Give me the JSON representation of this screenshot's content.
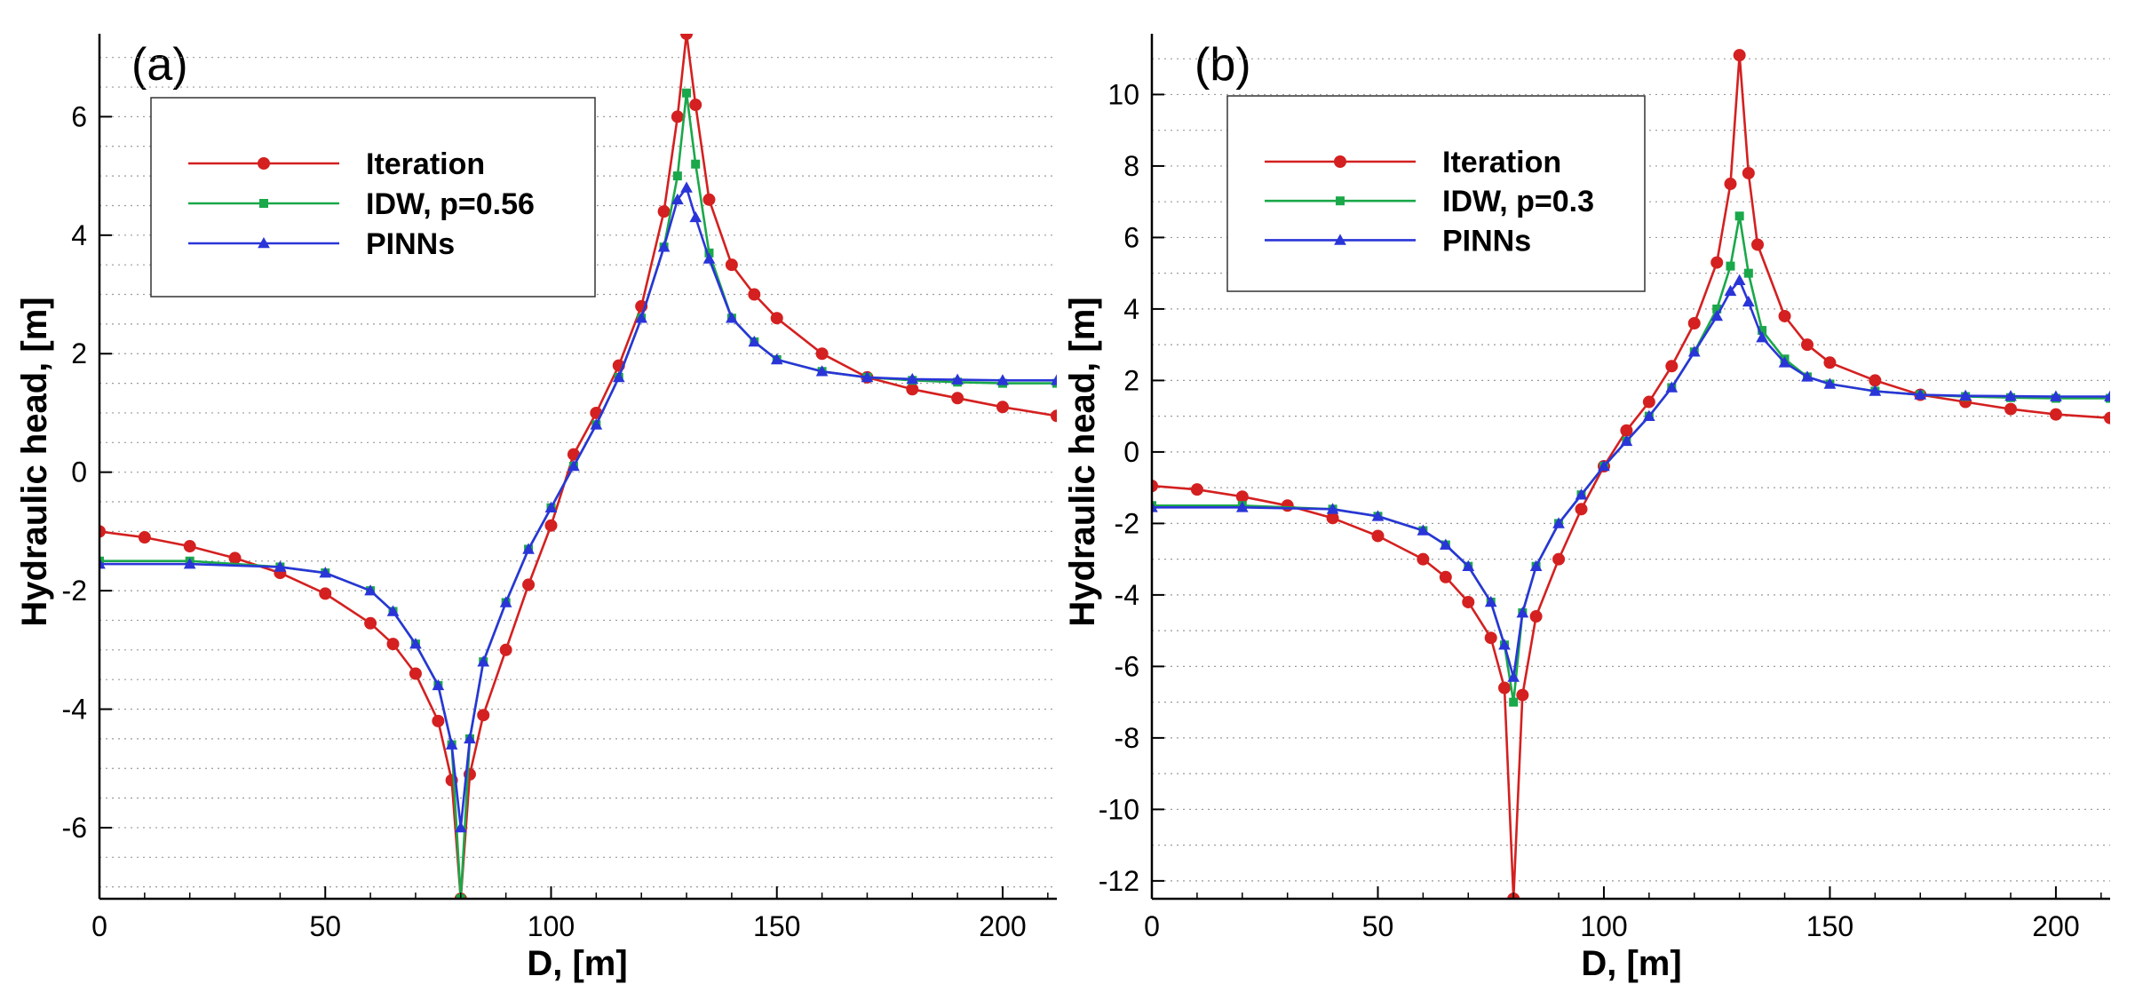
{
  "chart_data": [
    {
      "type": "line",
      "panel_label": "(a)",
      "xlabel": "D, [m]",
      "ylabel": "Hydraulic head, [m]",
      "xlim": [
        0,
        212
      ],
      "ylim": [
        -7.2,
        7.4
      ],
      "xticks": [
        0,
        50,
        100,
        150,
        200
      ],
      "yticks": [
        -6,
        -4,
        -2,
        0,
        2,
        4,
        6
      ],
      "grid": "horizontal dotted",
      "legend_position": "top-left",
      "series": [
        {
          "name": "Iteration",
          "color": "#d42020",
          "marker": "circle",
          "points": [
            [
              0,
              -1.0
            ],
            [
              10,
              -1.1
            ],
            [
              20,
              -1.25
            ],
            [
              30,
              -1.45
            ],
            [
              40,
              -1.7
            ],
            [
              50,
              -2.05
            ],
            [
              60,
              -2.55
            ],
            [
              65,
              -2.9
            ],
            [
              70,
              -3.4
            ],
            [
              75,
              -4.2
            ],
            [
              78,
              -5.2
            ],
            [
              80,
              -7.2
            ],
            [
              82,
              -5.1
            ],
            [
              85,
              -4.1
            ],
            [
              90,
              -3.0
            ],
            [
              95,
              -1.9
            ],
            [
              100,
              -0.9
            ],
            [
              105,
              0.3
            ],
            [
              110,
              1.0
            ],
            [
              115,
              1.8
            ],
            [
              120,
              2.8
            ],
            [
              125,
              4.4
            ],
            [
              128,
              6.0
            ],
            [
              130,
              7.4
            ],
            [
              132,
              6.2
            ],
            [
              135,
              4.6
            ],
            [
              140,
              3.5
            ],
            [
              145,
              3.0
            ],
            [
              150,
              2.6
            ],
            [
              160,
              2.0
            ],
            [
              170,
              1.6
            ],
            [
              180,
              1.4
            ],
            [
              190,
              1.25
            ],
            [
              200,
              1.1
            ],
            [
              212,
              0.95
            ]
          ]
        },
        {
          "name": "IDW, p=0.56",
          "color": "#1aa84a",
          "marker": "square",
          "points": [
            [
              0,
              -1.5
            ],
            [
              20,
              -1.5
            ],
            [
              40,
              -1.6
            ],
            [
              50,
              -1.7
            ],
            [
              60,
              -2.0
            ],
            [
              65,
              -2.35
            ],
            [
              70,
              -2.9
            ],
            [
              75,
              -3.6
            ],
            [
              78,
              -4.6
            ],
            [
              80,
              -7.2
            ],
            [
              82,
              -4.5
            ],
            [
              85,
              -3.2
            ],
            [
              90,
              -2.2
            ],
            [
              95,
              -1.3
            ],
            [
              100,
              -0.6
            ],
            [
              105,
              0.1
            ],
            [
              110,
              0.8
            ],
            [
              115,
              1.6
            ],
            [
              120,
              2.6
            ],
            [
              125,
              3.8
            ],
            [
              128,
              5.0
            ],
            [
              130,
              6.4
            ],
            [
              132,
              5.2
            ],
            [
              135,
              3.7
            ],
            [
              140,
              2.6
            ],
            [
              145,
              2.2
            ],
            [
              150,
              1.9
            ],
            [
              160,
              1.7
            ],
            [
              170,
              1.6
            ],
            [
              180,
              1.55
            ],
            [
              190,
              1.52
            ],
            [
              200,
              1.5
            ],
            [
              212,
              1.5
            ]
          ]
        },
        {
          "name": "PINNs",
          "color": "#2a35d8",
          "marker": "triangle",
          "points": [
            [
              0,
              -1.55
            ],
            [
              20,
              -1.55
            ],
            [
              40,
              -1.6
            ],
            [
              50,
              -1.7
            ],
            [
              60,
              -2.0
            ],
            [
              65,
              -2.35
            ],
            [
              70,
              -2.9
            ],
            [
              75,
              -3.6
            ],
            [
              78,
              -4.6
            ],
            [
              80,
              -6.0
            ],
            [
              82,
              -4.5
            ],
            [
              85,
              -3.2
            ],
            [
              90,
              -2.2
            ],
            [
              95,
              -1.3
            ],
            [
              100,
              -0.6
            ],
            [
              105,
              0.1
            ],
            [
              110,
              0.8
            ],
            [
              115,
              1.6
            ],
            [
              120,
              2.6
            ],
            [
              125,
              3.8
            ],
            [
              128,
              4.6
            ],
            [
              130,
              4.8
            ],
            [
              132,
              4.3
            ],
            [
              135,
              3.6
            ],
            [
              140,
              2.6
            ],
            [
              145,
              2.2
            ],
            [
              150,
              1.9
            ],
            [
              160,
              1.7
            ],
            [
              170,
              1.6
            ],
            [
              180,
              1.57
            ],
            [
              190,
              1.56
            ],
            [
              200,
              1.55
            ],
            [
              212,
              1.55
            ]
          ]
        }
      ]
    },
    {
      "type": "line",
      "panel_label": "(b)",
      "xlabel": "D, [m]",
      "ylabel": "Hydraulic head, [m]",
      "xlim": [
        0,
        212
      ],
      "ylim": [
        -12.5,
        11.7
      ],
      "xticks": [
        0,
        50,
        100,
        150,
        200
      ],
      "yticks": [
        -12,
        -10,
        -8,
        -6,
        -4,
        -2,
        0,
        2,
        4,
        6,
        8,
        10
      ],
      "grid": "horizontal dotted",
      "legend_position": "top-left",
      "series": [
        {
          "name": "Iteration",
          "color": "#d42020",
          "marker": "circle",
          "points": [
            [
              0,
              -0.95
            ],
            [
              10,
              -1.05
            ],
            [
              20,
              -1.25
            ],
            [
              30,
              -1.5
            ],
            [
              40,
              -1.85
            ],
            [
              50,
              -2.35
            ],
            [
              60,
              -3.0
            ],
            [
              65,
              -3.5
            ],
            [
              70,
              -4.2
            ],
            [
              75,
              -5.2
            ],
            [
              78,
              -6.6
            ],
            [
              80,
              -12.5
            ],
            [
              82,
              -6.8
            ],
            [
              85,
              -4.6
            ],
            [
              90,
              -3.0
            ],
            [
              95,
              -1.6
            ],
            [
              100,
              -0.4
            ],
            [
              105,
              0.6
            ],
            [
              110,
              1.4
            ],
            [
              115,
              2.4
            ],
            [
              120,
              3.6
            ],
            [
              125,
              5.3
            ],
            [
              128,
              7.5
            ],
            [
              130,
              11.1
            ],
            [
              132,
              7.8
            ],
            [
              134,
              5.8
            ],
            [
              140,
              3.8
            ],
            [
              145,
              3.0
            ],
            [
              150,
              2.5
            ],
            [
              160,
              2.0
            ],
            [
              170,
              1.6
            ],
            [
              180,
              1.4
            ],
            [
              190,
              1.2
            ],
            [
              200,
              1.05
            ],
            [
              212,
              0.95
            ]
          ]
        },
        {
          "name": "IDW, p=0.3",
          "color": "#1aa84a",
          "marker": "square",
          "points": [
            [
              0,
              -1.5
            ],
            [
              20,
              -1.5
            ],
            [
              40,
              -1.6
            ],
            [
              50,
              -1.8
            ],
            [
              60,
              -2.2
            ],
            [
              65,
              -2.6
            ],
            [
              70,
              -3.2
            ],
            [
              75,
              -4.2
            ],
            [
              78,
              -5.4
            ],
            [
              80,
              -7.0
            ],
            [
              82,
              -4.5
            ],
            [
              85,
              -3.2
            ],
            [
              90,
              -2.0
            ],
            [
              95,
              -1.2
            ],
            [
              100,
              -0.4
            ],
            [
              105,
              0.3
            ],
            [
              110,
              1.0
            ],
            [
              115,
              1.8
            ],
            [
              120,
              2.8
            ],
            [
              125,
              4.0
            ],
            [
              128,
              5.2
            ],
            [
              130,
              6.6
            ],
            [
              132,
              5.0
            ],
            [
              135,
              3.4
            ],
            [
              140,
              2.6
            ],
            [
              145,
              2.1
            ],
            [
              150,
              1.9
            ],
            [
              160,
              1.7
            ],
            [
              170,
              1.6
            ],
            [
              180,
              1.55
            ],
            [
              190,
              1.52
            ],
            [
              200,
              1.5
            ],
            [
              212,
              1.5
            ]
          ]
        },
        {
          "name": "PINNs",
          "color": "#2a35d8",
          "marker": "triangle",
          "points": [
            [
              0,
              -1.55
            ],
            [
              20,
              -1.55
            ],
            [
              40,
              -1.6
            ],
            [
              50,
              -1.8
            ],
            [
              60,
              -2.2
            ],
            [
              65,
              -2.6
            ],
            [
              70,
              -3.2
            ],
            [
              75,
              -4.2
            ],
            [
              78,
              -5.4
            ],
            [
              80,
              -6.3
            ],
            [
              82,
              -4.5
            ],
            [
              85,
              -3.2
            ],
            [
              90,
              -2.0
            ],
            [
              95,
              -1.2
            ],
            [
              100,
              -0.4
            ],
            [
              105,
              0.3
            ],
            [
              110,
              1.0
            ],
            [
              115,
              1.8
            ],
            [
              120,
              2.8
            ],
            [
              125,
              3.8
            ],
            [
              128,
              4.5
            ],
            [
              130,
              4.8
            ],
            [
              132,
              4.2
            ],
            [
              135,
              3.2
            ],
            [
              140,
              2.5
            ],
            [
              145,
              2.1
            ],
            [
              150,
              1.9
            ],
            [
              160,
              1.7
            ],
            [
              170,
              1.6
            ],
            [
              180,
              1.57
            ],
            [
              190,
              1.56
            ],
            [
              200,
              1.55
            ],
            [
              212,
              1.55
            ]
          ]
        }
      ]
    }
  ]
}
